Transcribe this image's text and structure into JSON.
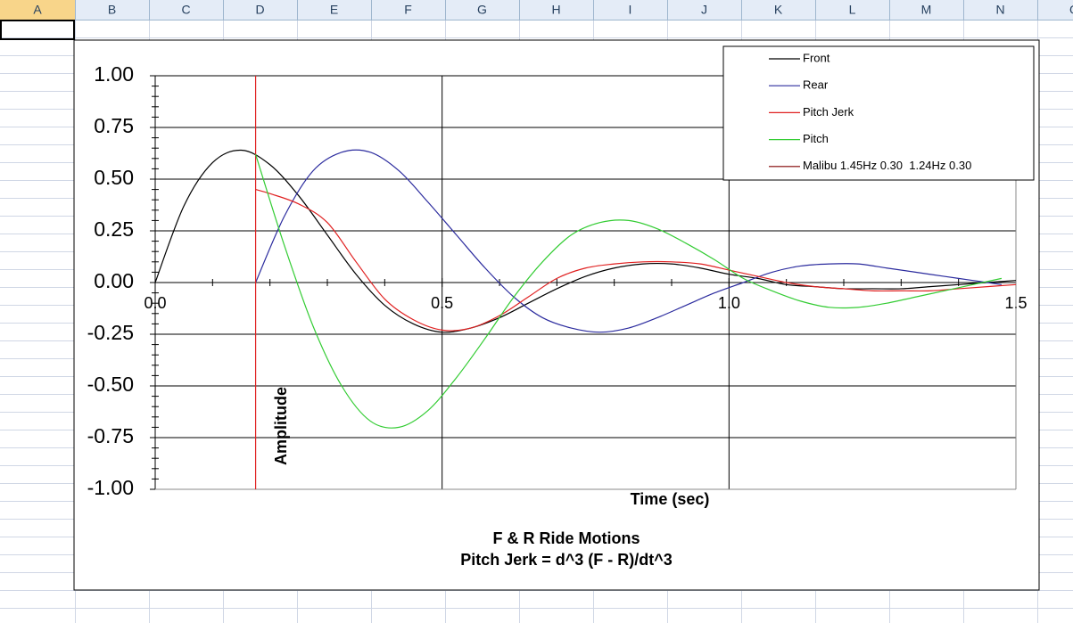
{
  "spreadsheet": {
    "columns": [
      "A",
      "B",
      "C",
      "D",
      "E",
      "F",
      "G",
      "H",
      "I",
      "J",
      "K",
      "L",
      "M",
      "N",
      "O"
    ]
  },
  "chart_data": {
    "type": "line",
    "title": "F & R Ride Motions",
    "subtitle": "Pitch Jerk = d^3 (F - R)/dt^3",
    "x_label": "Time (sec)",
    "y_label": "Amplitude",
    "xlim": [
      0,
      1.5
    ],
    "xticks": [
      {
        "value": 0,
        "label": "0.0"
      },
      0.5,
      {
        "value": 1.0,
        "label": "1.0"
      },
      1.5
    ],
    "ylim": [
      -1,
      1
    ],
    "yticks": [
      {
        "value": -1,
        "label": "-1.00"
      },
      {
        "value": -0.75,
        "label": "-0.75"
      },
      {
        "value": -0.5,
        "label": "-0.50"
      },
      {
        "value": -0.25,
        "label": "-0.25"
      },
      {
        "value": 0,
        "label": "0.00"
      },
      {
        "value": 0.25,
        "label": "0.25"
      },
      {
        "value": 0.5,
        "label": "0.50"
      },
      {
        "value": 0.75,
        "label": "0.75"
      },
      {
        "value": 1,
        "label": "1.00"
      }
    ],
    "grid": true,
    "legend": "upper right",
    "series": [
      {
        "name": "Front",
        "color": "#000000",
        "x": [
          0,
          0.05,
          0.1,
          0.15,
          0.2,
          0.25,
          0.3,
          0.35,
          0.4,
          0.45,
          0.5,
          0.55,
          0.6,
          0.65,
          0.7,
          0.75,
          0.8,
          0.85,
          0.9,
          0.95,
          1.0,
          1.05,
          1.1,
          1.15,
          1.2,
          1.25,
          1.3,
          1.35,
          1.4,
          1.45,
          1.5
        ],
        "values": [
          0,
          0.37,
          0.58,
          0.64,
          0.57,
          0.42,
          0.23,
          0.04,
          -0.11,
          -0.2,
          -0.24,
          -0.22,
          -0.17,
          -0.1,
          -0.03,
          0.03,
          0.07,
          0.09,
          0.09,
          0.07,
          0.04,
          0.02,
          -0.01,
          -0.02,
          -0.03,
          -0.03,
          -0.03,
          -0.02,
          -0.01,
          0,
          0.01
        ]
      },
      {
        "name": "Rear",
        "color": "#2b2b9e",
        "x": [
          0.175,
          0.225,
          0.275,
          0.325,
          0.375,
          0.425,
          0.475,
          0.525,
          0.575,
          0.625,
          0.675,
          0.725,
          0.775,
          0.825,
          0.875,
          0.925,
          0.975,
          1.025,
          1.075,
          1.125,
          1.175,
          1.225,
          1.275,
          1.325,
          1.375,
          1.425,
          1.475
        ],
        "values": [
          0,
          0.32,
          0.54,
          0.63,
          0.63,
          0.54,
          0.39,
          0.23,
          0.07,
          -0.07,
          -0.17,
          -0.22,
          -0.24,
          -0.22,
          -0.17,
          -0.11,
          -0.05,
          0,
          0.05,
          0.08,
          0.09,
          0.09,
          0.07,
          0.05,
          0.03,
          0.01,
          -0.01
        ]
      },
      {
        "name": "Pitch Jerk",
        "color": "#e02020",
        "x": [
          0.175,
          0.175,
          0.175,
          0.2,
          0.25,
          0.3,
          0.35,
          0.4,
          0.45,
          0.5,
          0.55,
          0.6,
          0.65,
          0.7,
          0.75,
          0.8,
          0.85,
          0.9,
          0.95,
          1.0,
          1.05,
          1.1,
          1.15,
          1.2,
          1.25,
          1.3,
          1.35,
          1.4,
          1.45,
          1.5
        ],
        "values": [
          -1,
          1,
          0.45,
          0.43,
          0.38,
          0.29,
          0.1,
          -0.08,
          -0.18,
          -0.23,
          -0.22,
          -0.16,
          -0.07,
          0.02,
          0.07,
          0.09,
          0.1,
          0.1,
          0.09,
          0.06,
          0.03,
          0,
          -0.02,
          -0.03,
          -0.04,
          -0.04,
          -0.04,
          -0.03,
          -0.02,
          -0.01
        ]
      },
      {
        "name": "Pitch",
        "color": "#33cc33",
        "x": [
          0.175,
          0.225,
          0.275,
          0.325,
          0.375,
          0.425,
          0.475,
          0.525,
          0.575,
          0.625,
          0.675,
          0.725,
          0.775,
          0.825,
          0.875,
          0.925,
          0.975,
          1.025,
          1.075,
          1.125,
          1.175,
          1.225,
          1.275,
          1.325,
          1.375,
          1.425,
          1.475
        ],
        "values": [
          0.62,
          0.18,
          -0.21,
          -0.5,
          -0.67,
          -0.7,
          -0.62,
          -0.46,
          -0.27,
          -0.07,
          0.1,
          0.23,
          0.29,
          0.3,
          0.26,
          0.19,
          0.11,
          0.02,
          -0.04,
          -0.09,
          -0.12,
          -0.12,
          -0.1,
          -0.07,
          -0.04,
          -0.01,
          0.02
        ]
      },
      {
        "name": "Malibu 1.45Hz 0.30  1.24Hz 0.30",
        "color": "#800000",
        "x": [],
        "values": []
      }
    ]
  }
}
